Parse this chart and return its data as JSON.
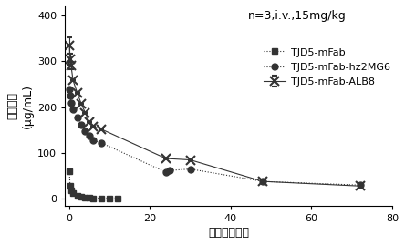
{
  "annotation": "n=3,i.v.,15mg/kg",
  "xlabel": "时间（小时）",
  "ylabel_line1": "血药浓度",
  "ylabel_line2": "(μg/mL)",
  "xlim": [
    -1,
    80
  ],
  "ylim": [
    -15,
    420
  ],
  "yticks": [
    0,
    100,
    200,
    300,
    400
  ],
  "xticks": [
    0,
    20,
    40,
    60,
    80
  ],
  "series": {
    "TJD5-mFab": {
      "x": [
        0.083,
        0.25,
        0.5,
        1,
        2,
        3,
        4,
        5,
        6,
        8,
        10,
        12
      ],
      "y": [
        60,
        28,
        18,
        12,
        7,
        4,
        3,
        2,
        1.5,
        1,
        0,
        0
      ],
      "color": "#333333",
      "linestyle": "dotted",
      "marker": "s",
      "markersize": 4,
      "label": "TJD5-mFab"
    },
    "TJD5-mFab-hz2MG6": {
      "x": [
        0.083,
        0.25,
        0.5,
        1,
        2,
        3,
        4,
        5,
        6,
        8,
        24,
        25,
        30,
        48,
        72
      ],
      "y": [
        240,
        225,
        210,
        195,
        178,
        162,
        148,
        138,
        128,
        122,
        58,
        62,
        65,
        38,
        30
      ],
      "color": "#333333",
      "linestyle": "dotted",
      "marker": "o",
      "markersize": 5,
      "label": "TJD5-mFab-hz2MG6"
    },
    "TJD5-mFab-ALB8": {
      "x": [
        0.083,
        0.25,
        0.5,
        1,
        2,
        3,
        4,
        5,
        6,
        8,
        24,
        30,
        48,
        72
      ],
      "y": [
        335,
        305,
        290,
        258,
        232,
        208,
        188,
        168,
        158,
        152,
        88,
        85,
        38,
        28
      ],
      "y_err": [
        18,
        12,
        8,
        0,
        0,
        0,
        0,
        0,
        0,
        0,
        0,
        0,
        0,
        0
      ],
      "color": "#333333",
      "linestyle": "solid",
      "marker": "x",
      "markersize": 7,
      "label": "TJD5-mFab-ALB8"
    }
  },
  "background_color": "#ffffff",
  "annotation_fontsize": 9,
  "axis_label_fontsize": 9,
  "tick_fontsize": 8,
  "legend_fontsize": 8
}
